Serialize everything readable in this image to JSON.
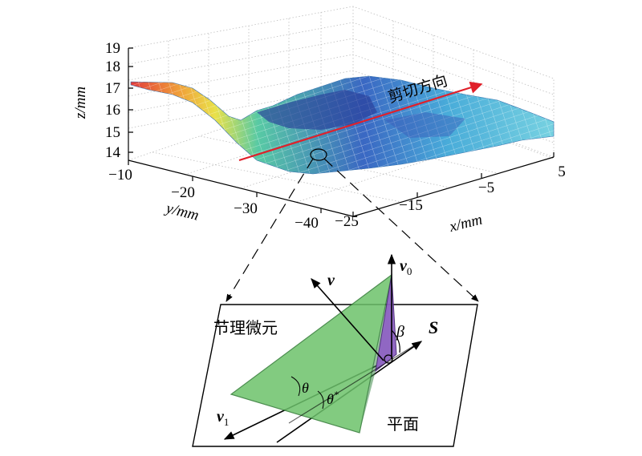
{
  "surface_plot": {
    "z_label": "z/mm",
    "y_label": "y/mm",
    "x_label": "x/mm",
    "z_ticks": [
      "19",
      "18",
      "17",
      "16",
      "15",
      "14"
    ],
    "y_ticks": [
      "−10",
      "−20",
      "−30",
      "−40"
    ],
    "x_ticks": [
      "−25",
      "−15",
      "−5",
      "5"
    ],
    "shear_direction_label": "剪切方向",
    "arrow_color": "#e0202a"
  },
  "detail_diagram": {
    "element_label": "节理微元",
    "plane_label": "平面",
    "v0_label": "v",
    "v0_sub": "0",
    "v_label": "v",
    "v1_label": "v",
    "v1_sub": "1",
    "s_label": "S",
    "beta_label": "β",
    "theta_label": "θ",
    "theta_star_label": "θ",
    "theta_star_sup": "*",
    "face_color": "#6dc26b",
    "side_color": "#8b5fc0"
  }
}
